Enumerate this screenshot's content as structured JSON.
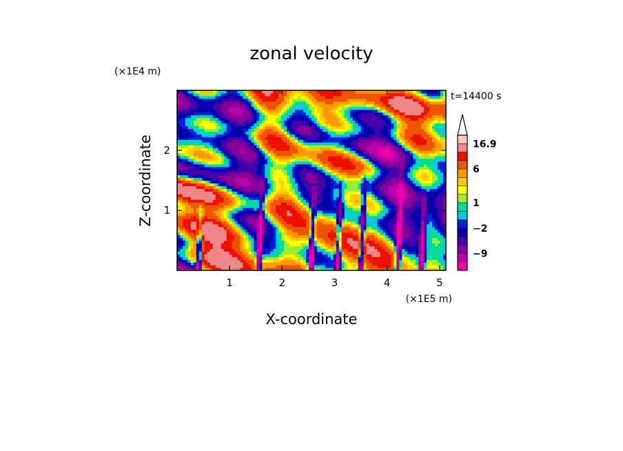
{
  "chart_data": {
    "type": "heatmap",
    "title": "zonal velocity",
    "xlabel": "X-coordinate",
    "ylabel": "Z-coordinate",
    "x_unit": "(×1E5 m)",
    "y_unit": "(×1E4 m)",
    "time_label": "t=14400 s",
    "xlim": [
      0,
      5.12
    ],
    "ylim": [
      0,
      3.0
    ],
    "x_ticks": [
      1,
      2,
      3,
      4,
      5
    ],
    "y_ticks": [
      1,
      2
    ],
    "x_tick_labels": [
      "1",
      "2",
      "3",
      "4",
      "5"
    ],
    "y_tick_labels": [
      "1",
      "2"
    ],
    "value_range": [
      -16,
      18
    ],
    "colorbar": {
      "levels": [
        -16,
        -12,
        -9,
        -6,
        -4,
        -2,
        -1,
        0,
        1,
        2,
        3,
        4,
        6,
        9,
        12,
        16.9
      ],
      "colors": [
        "#ee00aa",
        "#bb00aa",
        "#880099",
        "#4400aa",
        "#0000aa",
        "#0022dd",
        "#00ccdd",
        "#00dd99",
        "#99ee33",
        "#ffff00",
        "#ffcc00",
        "#ff9900",
        "#ee5500",
        "#ee1100",
        "#ee8888",
        "#ffccbb"
      ],
      "labeled_levels": [
        {
          "value": 16.9,
          "label": "16.9"
        },
        {
          "value": 6,
          "label": "6"
        },
        {
          "value": 1,
          "label": "1"
        },
        {
          "value": -2,
          "label": "−2"
        },
        {
          "value": -9,
          "label": "−9"
        }
      ],
      "extend": "max"
    }
  }
}
